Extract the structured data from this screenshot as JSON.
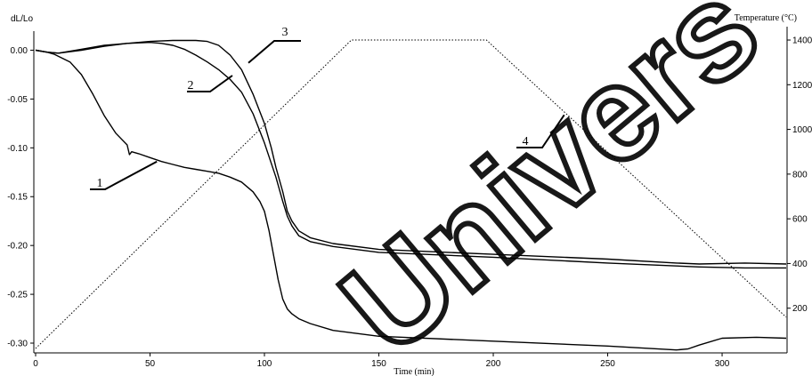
{
  "chart_data": {
    "type": "line",
    "xlabel": "Time (min)",
    "ylabel_left": "dL/Lo",
    "ylabel_right": "Temperature (°C)",
    "xlim": [
      0,
      328
    ],
    "ylim_left": [
      -0.31,
      0.015
    ],
    "ylim_right": [
      0,
      1420
    ],
    "x_ticks": [
      "0",
      "50",
      "100",
      "150",
      "200",
      "250",
      "300"
    ],
    "y_ticks_left": [
      "0.00",
      "-0.05",
      "-0.10",
      "-0.15",
      "-0.20",
      "-0.25",
      "-0.30"
    ],
    "y_ticks_right": [
      "200",
      "400",
      "600",
      "800",
      "1000",
      "1200",
      "1400"
    ],
    "grid": false,
    "legend": "none",
    "series": [
      {
        "label": "1",
        "axis": "left",
        "style": "solid",
        "x": [
          0,
          5,
          8,
          15,
          20,
          25,
          30,
          35,
          40,
          41,
          42,
          45,
          50,
          55,
          60,
          65,
          70,
          75,
          80,
          85,
          90,
          95,
          98,
          100,
          102,
          104,
          106,
          108,
          110,
          112,
          115,
          120,
          130,
          150,
          200,
          250,
          280,
          285,
          290,
          300,
          315,
          328
        ],
        "y": [
          0.0,
          -0.002,
          -0.004,
          -0.012,
          -0.025,
          -0.045,
          -0.067,
          -0.085,
          -0.097,
          -0.107,
          -0.104,
          -0.106,
          -0.11,
          -0.114,
          -0.117,
          -0.12,
          -0.122,
          -0.124,
          -0.126,
          -0.13,
          -0.135,
          -0.145,
          -0.155,
          -0.165,
          -0.185,
          -0.21,
          -0.235,
          -0.255,
          -0.265,
          -0.27,
          -0.275,
          -0.28,
          -0.287,
          -0.293,
          -0.298,
          -0.303,
          -0.307,
          -0.306,
          -0.302,
          -0.295,
          -0.294,
          -0.295
        ]
      },
      {
        "label": "2",
        "axis": "left",
        "style": "solid",
        "x": [
          0,
          5,
          10,
          20,
          30,
          40,
          50,
          55,
          60,
          65,
          70,
          75,
          80,
          85,
          90,
          95,
          100,
          105,
          108,
          110,
          112,
          115,
          120,
          130,
          150,
          200,
          250,
          280,
          290,
          310,
          328
        ],
        "y": [
          0.0,
          -0.002,
          -0.003,
          0.0,
          0.004,
          0.007,
          0.008,
          0.007,
          0.005,
          0.001,
          -0.005,
          -0.012,
          -0.02,
          -0.03,
          -0.043,
          -0.065,
          -0.095,
          -0.13,
          -0.155,
          -0.17,
          -0.18,
          -0.19,
          -0.196,
          -0.201,
          -0.207,
          -0.212,
          -0.218,
          -0.221,
          -0.222,
          -0.223,
          -0.223
        ]
      },
      {
        "label": "3",
        "axis": "left",
        "style": "solid",
        "x": [
          0,
          5,
          10,
          20,
          30,
          40,
          50,
          60,
          65,
          70,
          75,
          80,
          85,
          90,
          95,
          100,
          103,
          105,
          108,
          110,
          112,
          115,
          120,
          130,
          150,
          200,
          250,
          280,
          290,
          310,
          328
        ],
        "y": [
          0.0,
          -0.002,
          -0.003,
          0.001,
          0.005,
          0.007,
          0.009,
          0.01,
          0.01,
          0.01,
          0.009,
          0.005,
          -0.005,
          -0.02,
          -0.045,
          -0.075,
          -0.1,
          -0.12,
          -0.145,
          -0.165,
          -0.175,
          -0.185,
          -0.192,
          -0.198,
          -0.204,
          -0.209,
          -0.214,
          -0.218,
          -0.219,
          -0.218,
          -0.219
        ]
      },
      {
        "label": "4",
        "axis": "right",
        "style": "dotted",
        "x": [
          0,
          138,
          197,
          328
        ],
        "y": [
          20,
          1400,
          1400,
          160
        ]
      }
    ],
    "callouts": [
      {
        "label": "1",
        "text": "1"
      },
      {
        "label": "2",
        "text": "2"
      },
      {
        "label": "3",
        "text": "3"
      },
      {
        "label": "4",
        "text": "4"
      }
    ]
  },
  "watermark": "Univers"
}
